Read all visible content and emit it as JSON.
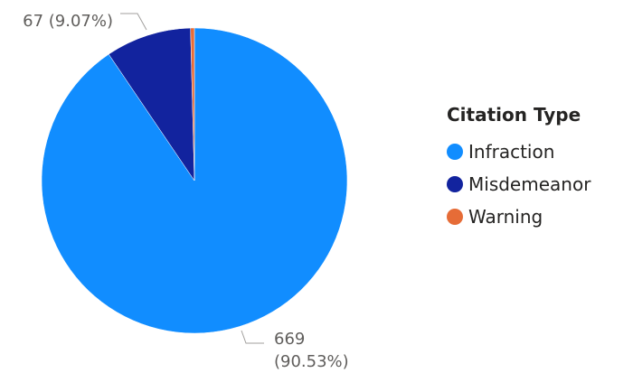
{
  "chart_data": {
    "type": "pie",
    "legend_title": "Citation Type",
    "legend_position": "right",
    "categories": [
      "Infraction",
      "Misdemeanor",
      "Warning"
    ],
    "values": [
      669,
      67,
      3
    ],
    "colors": [
      "#118dff",
      "#12239e",
      "#e66c37"
    ],
    "data_labels": [
      {
        "category": "Misdemeanor",
        "line1": "67 (9.07%)",
        "line2": ""
      },
      {
        "category": "Infraction",
        "line1": "669",
        "line2": "(90.53%)"
      }
    ]
  }
}
